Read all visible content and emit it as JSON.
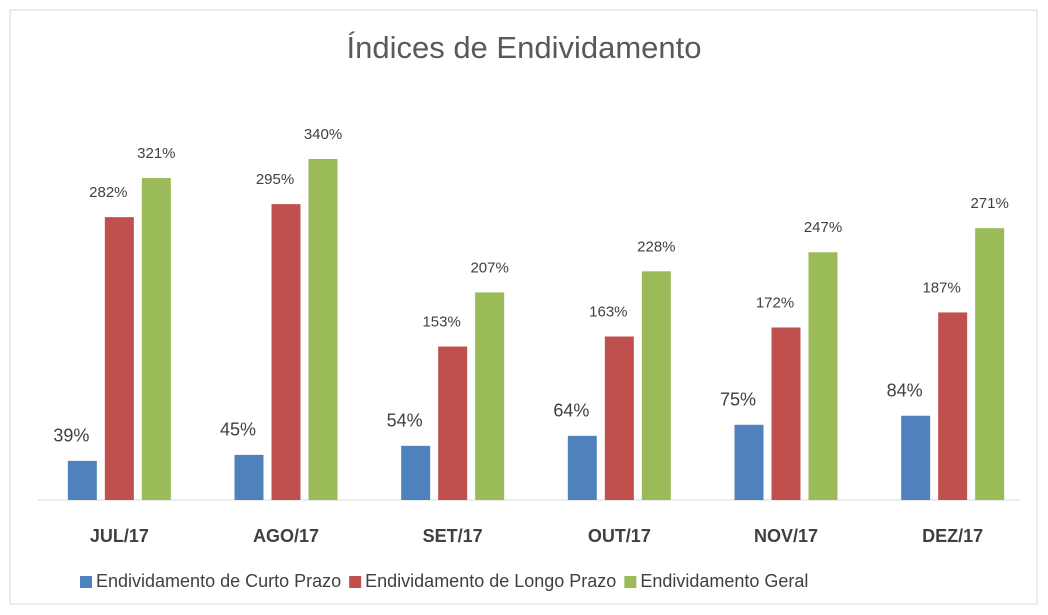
{
  "chart_data": {
    "type": "bar",
    "title": "Índices de Endividamento",
    "categories": [
      "JUL/17",
      "AGO/17",
      "SET/17",
      "OUT/17",
      "NOV/17",
      "DEZ/17"
    ],
    "series": [
      {
        "name": "Endividamento de Curto Prazo",
        "color": "#4f81bd",
        "values": [
          39,
          45,
          54,
          64,
          75,
          84
        ],
        "value_labels": [
          "39%",
          "45%",
          "54%",
          "64%",
          "75%",
          "84%"
        ]
      },
      {
        "name": "Endividamento de Longo Prazo",
        "color": "#c0504d",
        "values": [
          282,
          295,
          153,
          163,
          172,
          187
        ],
        "value_labels": [
          "282%",
          "295%",
          "153%",
          "163%",
          "172%",
          "187%"
        ]
      },
      {
        "name": "Endividamento Geral",
        "color": "#9bbb59",
        "values": [
          321,
          340,
          207,
          228,
          247,
          271
        ],
        "value_labels": [
          "321%",
          "340%",
          "207%",
          "228%",
          "247%",
          "271%"
        ]
      }
    ],
    "legend": "bottom"
  }
}
